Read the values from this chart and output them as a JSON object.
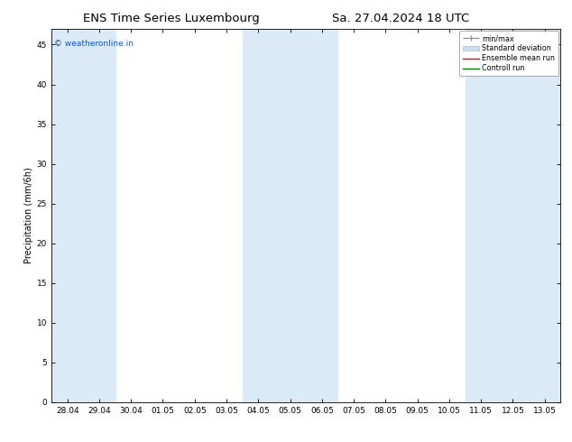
{
  "title_left": "ENS Time Series Luxembourg",
  "title_right": "Sa. 27.04.2024 18 UTC",
  "ylabel": "Precipitation (mm/6h)",
  "xlabel_ticks": [
    "28.04",
    "29.04",
    "30.04",
    "01.05",
    "02.05",
    "03.05",
    "04.05",
    "05.05",
    "06.05",
    "07.05",
    "08.05",
    "09.05",
    "10.05",
    "11.05",
    "12.05",
    "13.05"
  ],
  "ylim": [
    0,
    47
  ],
  "yticks": [
    0,
    5,
    10,
    15,
    20,
    25,
    30,
    35,
    40,
    45
  ],
  "shaded_bands": [
    {
      "xstart": 0,
      "xend": 1,
      "color": "#daeaf7"
    },
    {
      "xstart": 6,
      "xend": 8,
      "color": "#daeaf7"
    },
    {
      "xstart": 13,
      "xend": 15,
      "color": "#daeaf7"
    }
  ],
  "legend_items": [
    {
      "label": "min/max",
      "color": "#aaaaaa",
      "type": "errorbar"
    },
    {
      "label": "Standard deviation",
      "color": "#ccddf0",
      "type": "box"
    },
    {
      "label": "Ensemble mean run",
      "color": "red",
      "type": "line"
    },
    {
      "label": "Controll run",
      "color": "green",
      "type": "line"
    }
  ],
  "watermark_text": "© weatheronline.in",
  "watermark_color": "#1155cc",
  "bg_color": "#ffffff",
  "plot_bg_color": "#ffffff",
  "spine_color": "#000000",
  "tick_color": "#000000",
  "title_fontsize": 9.5,
  "label_fontsize": 7,
  "tick_fontsize": 6.5,
  "legend_fontsize": 5.8,
  "watermark_fontsize": 6.5
}
